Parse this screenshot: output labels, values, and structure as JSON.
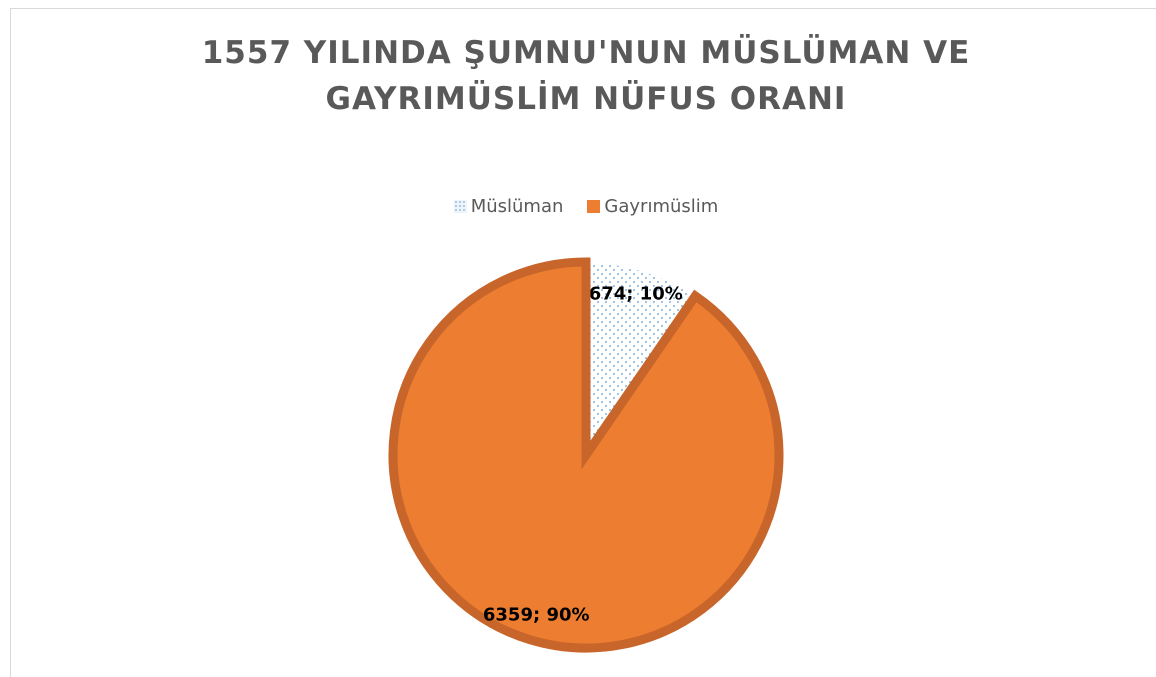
{
  "chart_data": {
    "type": "pie",
    "title": "1557 YILINDA ŞUMNU'NUN MÜSLÜMAN VE GAYRIMÜSLİM NÜFUS ORANI",
    "categories": [
      "Müslüman",
      "Gayrımüslim"
    ],
    "values": [
      674,
      6359
    ],
    "value_labels": [
      "674; 10%",
      "6359; 90%"
    ],
    "colors": [
      "#5b9bd5",
      "#ed7d31"
    ],
    "legend": "top"
  }
}
